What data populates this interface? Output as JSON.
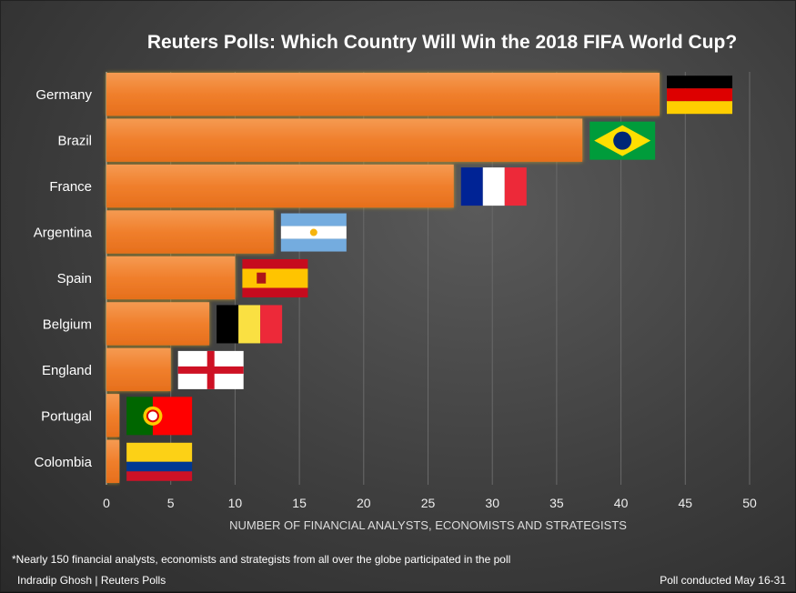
{
  "chart_data": {
    "type": "bar",
    "orientation": "horizontal",
    "title": "Reuters Polls: Which Country Will Win the 2018 FIFA World Cup?",
    "xlabel": "NUMBER OF FINANCIAL ANALYSTS, ECONOMISTS AND STRATEGISTS",
    "categories": [
      "Germany",
      "Brazil",
      "France",
      "Argentina",
      "Spain",
      "Belgium",
      "England",
      "Portugal",
      "Colombia"
    ],
    "values": [
      43,
      37,
      27,
      13,
      10,
      8,
      5,
      1,
      1
    ],
    "xlim": [
      0,
      50
    ],
    "xticks": [
      0,
      5,
      10,
      15,
      20,
      25,
      30,
      35,
      40,
      45,
      50
    ],
    "grid": true,
    "bar_color": "#f07f2c",
    "flags": [
      "germany-flag",
      "brazil-flag",
      "france-flag",
      "argentina-flag",
      "spain-flag",
      "belgium-flag",
      "england-flag",
      "portugal-flag",
      "colombia-flag"
    ]
  },
  "footnote": "*Nearly 150 financial analysts, economists and strategists from all over the globe participated in the poll",
  "author": "Indradip Ghosh | Reuters Polls",
  "date_note": "Poll conducted May 16-31"
}
